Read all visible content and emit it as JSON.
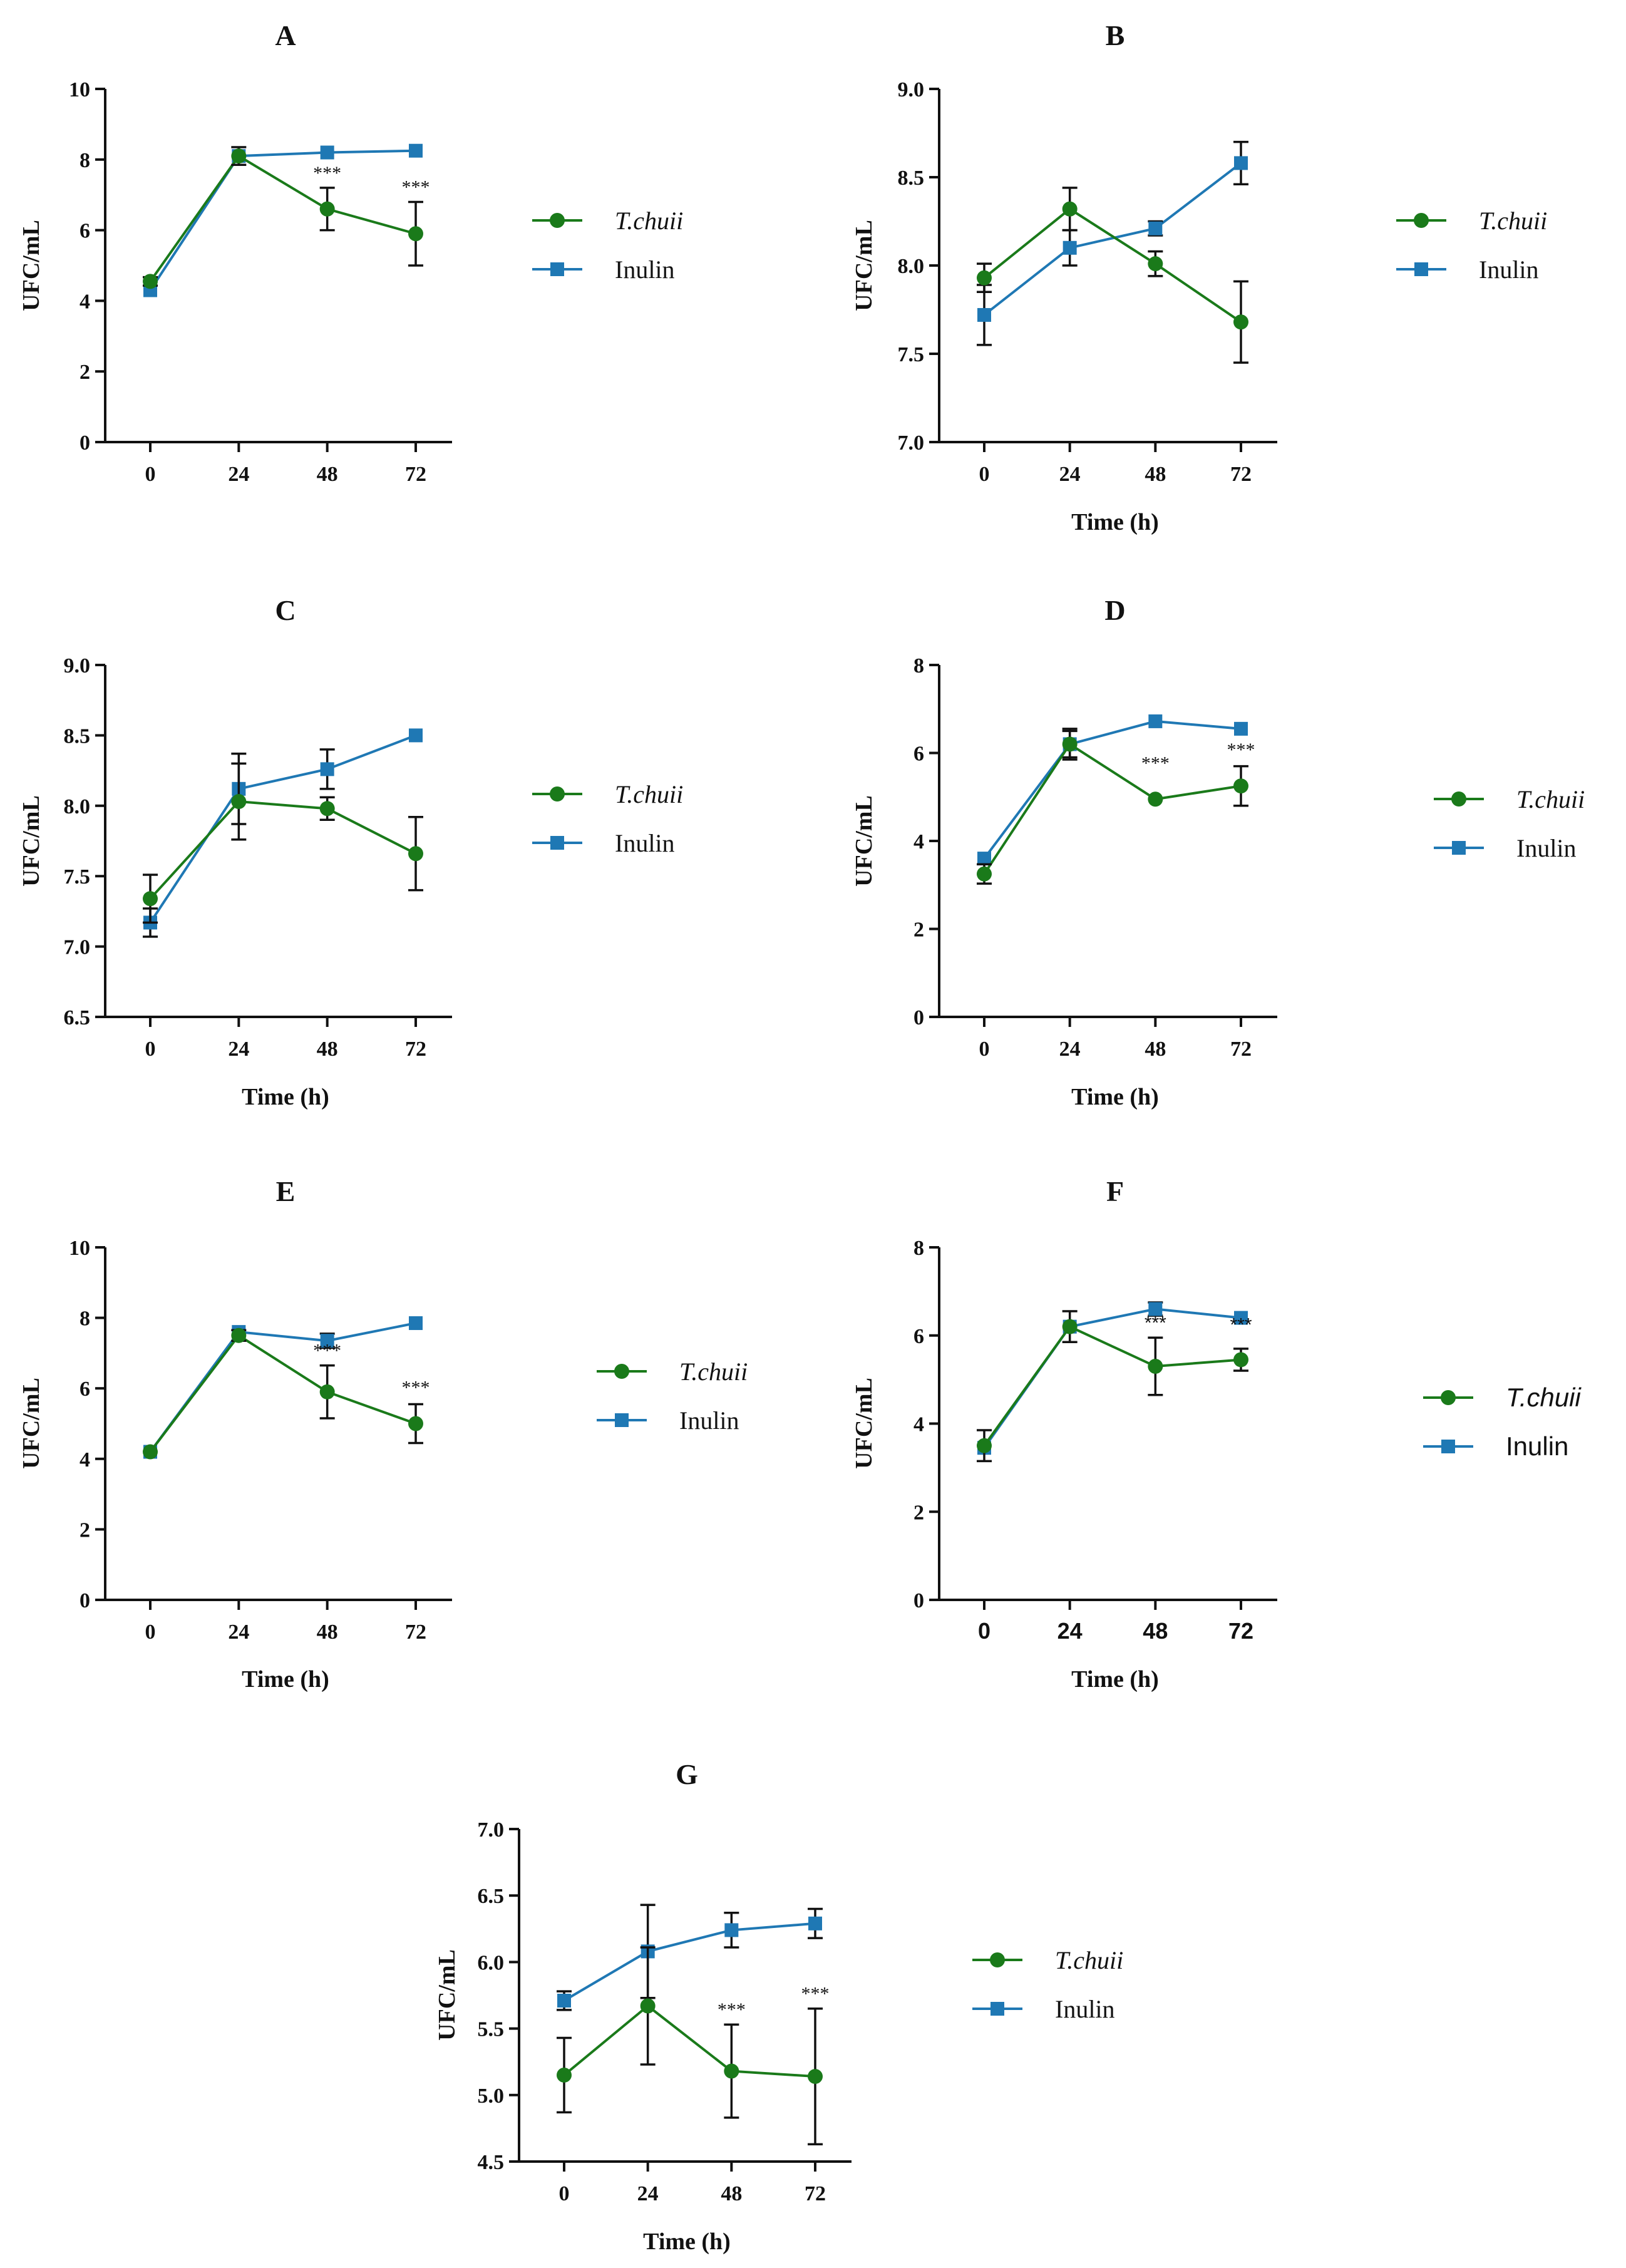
{
  "colors": {
    "t_chuii": "#1a7a1a",
    "inulin": "#1f78b4",
    "axis": "#111111"
  },
  "chart_data": [
    {
      "panel": "A",
      "type": "line",
      "title": "A",
      "xlabel": "",
      "ylabel": "UFC/mL",
      "ylim": [
        0,
        10
      ],
      "yticks": [
        "0",
        "2",
        "4",
        "6",
        "8",
        "10"
      ],
      "x": [
        0,
        24,
        48,
        72
      ],
      "xtick_labels": [
        "0",
        "24",
        "48",
        "72"
      ],
      "series": [
        {
          "name": "T.chuii",
          "marker": "circle",
          "color": "#1a7a1a",
          "values": [
            4.55,
            8.1,
            6.6,
            5.9
          ],
          "err": [
            0.12,
            0.25,
            0.6,
            0.9
          ]
        },
        {
          "name": "Inulin",
          "marker": "square",
          "color": "#1f78b4",
          "values": [
            4.3,
            8.1,
            8.2,
            8.25
          ],
          "err": [
            0.0,
            0.0,
            0.0,
            0.0
          ]
        }
      ],
      "annotations": [
        {
          "x": 48,
          "text": "***"
        },
        {
          "x": 72,
          "text": "***"
        }
      ]
    },
    {
      "panel": "B",
      "type": "line",
      "title": "B",
      "xlabel": "Time (h)",
      "ylabel": "UFC/mL",
      "ylim": [
        7.0,
        9.0
      ],
      "yticks": [
        "7.0",
        "7.5",
        "8.0",
        "8.5",
        "9.0"
      ],
      "x": [
        0,
        24,
        48,
        72
      ],
      "xtick_labels": [
        "0",
        "24",
        "48",
        "72"
      ],
      "series": [
        {
          "name": "T.chuii",
          "marker": "circle",
          "color": "#1a7a1a",
          "values": [
            7.93,
            8.32,
            8.01,
            7.68
          ],
          "err": [
            0.08,
            0.12,
            0.07,
            0.23
          ]
        },
        {
          "name": "Inulin",
          "marker": "square",
          "color": "#1f78b4",
          "values": [
            7.72,
            8.1,
            8.21,
            8.58
          ],
          "err": [
            0.17,
            0.1,
            0.04,
            0.12
          ]
        }
      ],
      "annotations": []
    },
    {
      "panel": "C",
      "type": "line",
      "title": "C",
      "xlabel": "Time (h)",
      "ylabel": "UFC/mL",
      "ylim": [
        6.5,
        9.0
      ],
      "yticks": [
        "6.5",
        "7.0",
        "7.5",
        "8.0",
        "8.5",
        "9.0"
      ],
      "x": [
        0,
        24,
        48,
        72
      ],
      "xtick_labels": [
        "0",
        "24",
        "48",
        "72"
      ],
      "series": [
        {
          "name": "T.chuii",
          "marker": "circle",
          "color": "#1a7a1a",
          "values": [
            7.34,
            8.03,
            7.98,
            7.66
          ],
          "err": [
            0.17,
            0.27,
            0.08,
            0.26
          ]
        },
        {
          "name": "Inulin",
          "marker": "square",
          "color": "#1f78b4",
          "values": [
            7.17,
            8.12,
            8.26,
            8.5
          ],
          "err": [
            0.1,
            0.25,
            0.14,
            0.0
          ]
        }
      ],
      "annotations": []
    },
    {
      "panel": "D",
      "type": "line",
      "title": "D",
      "xlabel": "Time (h)",
      "ylabel": "UFC/mL",
      "ylim": [
        0,
        8
      ],
      "yticks": [
        "0",
        "2",
        "4",
        "6",
        "8"
      ],
      "x": [
        0,
        24,
        48,
        72
      ],
      "xtick_labels": [
        "0",
        "24",
        "48",
        "72"
      ],
      "series": [
        {
          "name": "T.chuii",
          "marker": "circle",
          "color": "#1a7a1a",
          "values": [
            3.25,
            6.2,
            4.95,
            5.25
          ],
          "err": [
            0.22,
            0.35,
            0.0,
            0.45
          ]
        },
        {
          "name": "Inulin",
          "marker": "square",
          "color": "#1f78b4",
          "values": [
            3.6,
            6.2,
            6.72,
            6.55
          ],
          "err": [
            0.0,
            0.3,
            0.0,
            0.0
          ]
        }
      ],
      "annotations": [
        {
          "x": 48,
          "text": "***"
        },
        {
          "x": 72,
          "text": "***"
        }
      ]
    },
    {
      "panel": "E",
      "type": "line",
      "title": "E",
      "xlabel": "Time (h)",
      "ylabel": "UFC/mL",
      "ylim": [
        0,
        10
      ],
      "yticks": [
        "0",
        "2",
        "4",
        "6",
        "8",
        "10"
      ],
      "x": [
        0,
        24,
        48,
        72
      ],
      "xtick_labels": [
        "0",
        "24",
        "48",
        "72"
      ],
      "series": [
        {
          "name": "T.chuii",
          "marker": "circle",
          "color": "#1a7a1a",
          "values": [
            4.2,
            7.5,
            5.9,
            5.0
          ],
          "err": [
            0.0,
            0.15,
            0.75,
            0.55
          ]
        },
        {
          "name": "Inulin",
          "marker": "square",
          "color": "#1f78b4",
          "values": [
            4.2,
            7.6,
            7.35,
            7.85
          ],
          "err": [
            0.0,
            0.0,
            0.2,
            0.0
          ]
        }
      ],
      "annotations": [
        {
          "x": 48,
          "text": "***"
        },
        {
          "x": 72,
          "text": "***"
        }
      ]
    },
    {
      "panel": "F",
      "type": "line",
      "title": "F",
      "xlabel": "Time (h)",
      "ylabel": "UFC/mL",
      "ylim": [
        0,
        8
      ],
      "yticks": [
        "0",
        "2",
        "4",
        "6",
        "8"
      ],
      "x": [
        0,
        24,
        48,
        72
      ],
      "xtick_labels": [
        "0",
        "24",
        "48",
        "72"
      ],
      "series": [
        {
          "name": "T.chuii",
          "marker": "circle",
          "color": "#1a7a1a",
          "values": [
            3.5,
            6.2,
            5.3,
            5.45
          ],
          "err": [
            0.35,
            0.35,
            0.65,
            0.25
          ]
        },
        {
          "name": "Inulin",
          "marker": "square",
          "color": "#1f78b4",
          "values": [
            3.45,
            6.2,
            6.6,
            6.4
          ],
          "err": [
            0.0,
            0.0,
            0.15,
            0.0
          ]
        }
      ],
      "annotations": [
        {
          "x": 48,
          "text": "***"
        },
        {
          "x": 72,
          "text": "***"
        }
      ]
    },
    {
      "panel": "G",
      "type": "line",
      "title": "G",
      "xlabel": "Time (h)",
      "ylabel": "UFC/mL",
      "ylim": [
        4.5,
        7.0
      ],
      "yticks": [
        "4.5",
        "5.0",
        "5.5",
        "6.0",
        "6.5",
        "7.0"
      ],
      "x": [
        0,
        24,
        48,
        72
      ],
      "xtick_labels": [
        "0",
        "24",
        "48",
        "72"
      ],
      "series": [
        {
          "name": "T.chuii",
          "marker": "circle",
          "color": "#1a7a1a",
          "values": [
            5.15,
            5.67,
            5.18,
            5.14
          ],
          "err": [
            0.28,
            0.44,
            0.35,
            0.51
          ]
        },
        {
          "name": "Inulin",
          "marker": "square",
          "color": "#1f78b4",
          "values": [
            5.71,
            6.08,
            6.24,
            6.29
          ],
          "err": [
            0.07,
            0.35,
            0.13,
            0.11
          ]
        }
      ],
      "annotations": [
        {
          "x": 48,
          "text": "***"
        },
        {
          "x": 72,
          "text": "***"
        }
      ]
    }
  ]
}
